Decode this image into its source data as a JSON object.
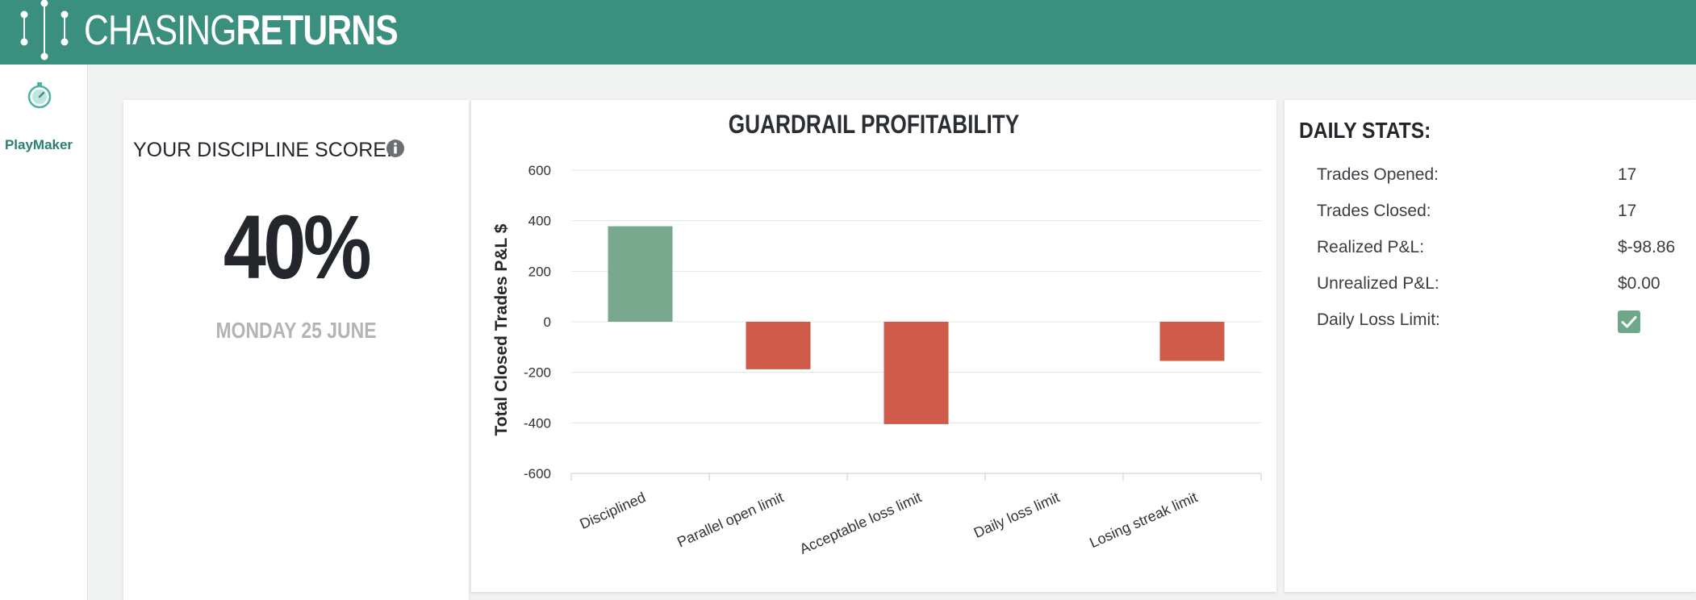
{
  "header": {
    "logo_thin": "CHASING",
    "logo_bold": "RETURNS",
    "logo_icon": "dots-lines-logo-icon",
    "color": "#3b8f7f"
  },
  "sidebar": {
    "items": [
      {
        "label": "PlayMaker",
        "icon": "stopwatch-icon"
      }
    ]
  },
  "score": {
    "title": "YOUR DISCIPLINE SCORE:",
    "info_icon": "info-icon",
    "value": "40%",
    "date": "MONDAY 25 JUNE"
  },
  "chart_data": {
    "type": "bar",
    "title": "GUARDRAIL PROFITABILITY",
    "xlabel": "",
    "ylabel": "Total Closed Trades P&L $",
    "categories": [
      "Disciplined",
      "Parallel open limit",
      "Acceptable loss limit",
      "Daily loss limit",
      "Losing streak limit"
    ],
    "values": [
      378,
      -188,
      -405,
      0,
      -155
    ],
    "ylim": [
      -600,
      600
    ],
    "yticks": [
      600,
      400,
      200,
      0,
      -200,
      -400,
      -600
    ],
    "grid": true,
    "legend": "none",
    "colors": {
      "positive": "#78a88e",
      "negative": "#cf5b4b"
    }
  },
  "stats": {
    "title": "DAILY STATS:",
    "rows": [
      {
        "label": "Trades Opened:",
        "value": "17"
      },
      {
        "label": "Trades Closed:",
        "value": "17"
      },
      {
        "label": "Realized P&L:",
        "value": "$-98.86"
      },
      {
        "label": "Unrealized P&L:",
        "value": "$0.00"
      },
      {
        "label": "Daily Loss Limit:",
        "value": "",
        "checked": true
      }
    ]
  }
}
